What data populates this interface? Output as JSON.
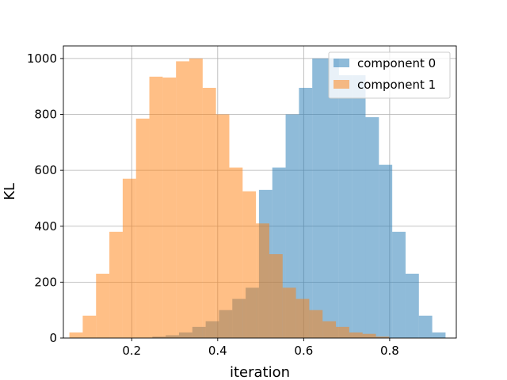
{
  "chart_data": {
    "type": "histogram",
    "title": "",
    "xlabel": "iteration",
    "ylabel": "KL",
    "xlim": [
      0.041,
      0.955
    ],
    "ylim": [
      0,
      1045
    ],
    "xticks": [
      0.2,
      0.4,
      0.6,
      0.8
    ],
    "xtick_labels": [
      "0.2",
      "0.4",
      "0.6",
      "0.8"
    ],
    "yticks": [
      0,
      200,
      400,
      600,
      800,
      1000
    ],
    "ytick_labels": [
      "0",
      "200",
      "400",
      "600",
      "800",
      "1000"
    ],
    "grid": true,
    "legend_position": "top-right",
    "alpha": 0.5,
    "series": [
      {
        "name": "component 0",
        "color": "#1f77b4",
        "bins": [
          [
            0.062,
            0.093,
            0
          ],
          [
            0.093,
            0.124,
            0
          ],
          [
            0.124,
            0.155,
            0
          ],
          [
            0.155,
            0.186,
            0
          ],
          [
            0.186,
            0.217,
            0
          ],
          [
            0.217,
            0.248,
            0
          ],
          [
            0.248,
            0.279,
            5
          ],
          [
            0.279,
            0.31,
            10
          ],
          [
            0.31,
            0.341,
            20
          ],
          [
            0.341,
            0.372,
            40
          ],
          [
            0.372,
            0.403,
            60
          ],
          [
            0.403,
            0.434,
            100
          ],
          [
            0.434,
            0.465,
            140
          ],
          [
            0.465,
            0.496,
            180
          ],
          [
            0.496,
            0.527,
            530
          ],
          [
            0.527,
            0.558,
            610
          ],
          [
            0.558,
            0.589,
            800
          ],
          [
            0.589,
            0.62,
            895
          ],
          [
            0.62,
            0.651,
            1000
          ],
          [
            0.651,
            0.682,
            1000
          ],
          [
            0.682,
            0.713,
            940
          ],
          [
            0.713,
            0.744,
            940
          ],
          [
            0.744,
            0.775,
            790
          ],
          [
            0.775,
            0.806,
            620
          ],
          [
            0.806,
            0.837,
            380
          ],
          [
            0.837,
            0.868,
            230
          ],
          [
            0.868,
            0.899,
            80
          ],
          [
            0.899,
            0.93,
            20
          ]
        ]
      },
      {
        "name": "component 1",
        "color": "#ff7f0e",
        "bins": [
          [
            0.055,
            0.086,
            20
          ],
          [
            0.086,
            0.117,
            80
          ],
          [
            0.117,
            0.148,
            230
          ],
          [
            0.148,
            0.179,
            380
          ],
          [
            0.179,
            0.21,
            570
          ],
          [
            0.21,
            0.241,
            785
          ],
          [
            0.241,
            0.272,
            935
          ],
          [
            0.272,
            0.303,
            932
          ],
          [
            0.303,
            0.334,
            990
          ],
          [
            0.334,
            0.365,
            1000
          ],
          [
            0.365,
            0.396,
            895
          ],
          [
            0.396,
            0.427,
            800
          ],
          [
            0.427,
            0.458,
            610
          ],
          [
            0.458,
            0.489,
            525
          ],
          [
            0.489,
            0.52,
            410
          ],
          [
            0.52,
            0.551,
            300
          ],
          [
            0.551,
            0.582,
            180
          ],
          [
            0.582,
            0.613,
            140
          ],
          [
            0.613,
            0.644,
            100
          ],
          [
            0.644,
            0.675,
            60
          ],
          [
            0.675,
            0.706,
            40
          ],
          [
            0.706,
            0.737,
            20
          ],
          [
            0.737,
            0.768,
            15
          ],
          [
            0.768,
            0.799,
            5
          ]
        ]
      }
    ]
  }
}
